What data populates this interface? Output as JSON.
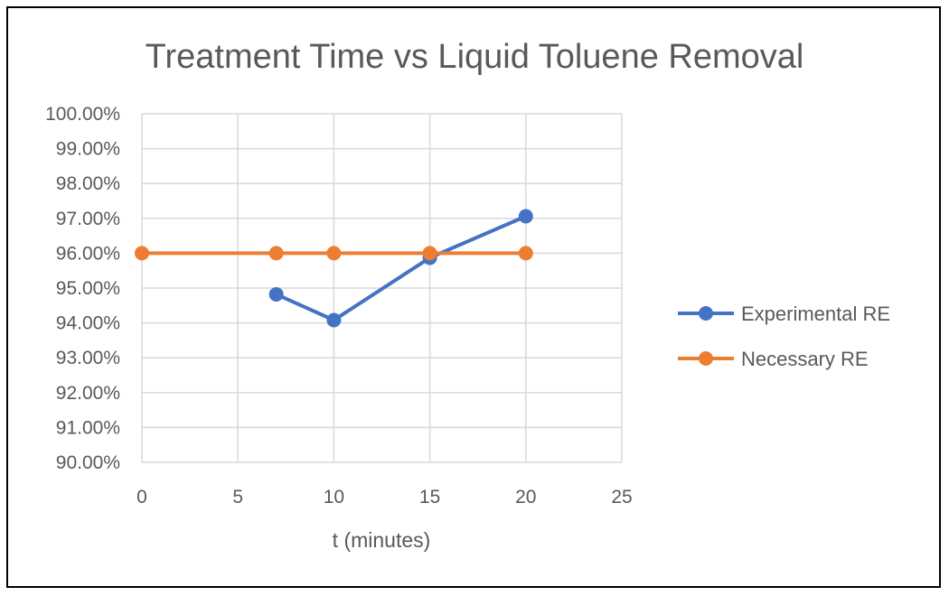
{
  "chart_data": {
    "type": "scatter",
    "title": "Treatment Time vs Liquid Toluene Removal",
    "xlabel": "t (minutes)",
    "ylabel": "",
    "xlim": [
      0,
      25
    ],
    "ylim": [
      0.9,
      1.0
    ],
    "x_ticks": [
      "0",
      "5",
      "10",
      "15",
      "20",
      "25"
    ],
    "y_ticks": [
      "90.00%",
      "91.00%",
      "92.00%",
      "93.00%",
      "94.00%",
      "95.00%",
      "96.00%",
      "97.00%",
      "98.00%",
      "99.00%",
      "100.00%"
    ],
    "grid": true,
    "legend_position": "right",
    "series": [
      {
        "name": "Experimental RE",
        "color": "#4472C4",
        "x": [
          7,
          10,
          15,
          20
        ],
        "y": [
          0.9482,
          0.9408,
          0.9587,
          0.9706
        ]
      },
      {
        "name": "Necessary RE",
        "color": "#ED7D31",
        "x": [
          0,
          7,
          10,
          15,
          20
        ],
        "y": [
          0.96,
          0.96,
          0.96,
          0.96,
          0.96
        ]
      }
    ]
  }
}
